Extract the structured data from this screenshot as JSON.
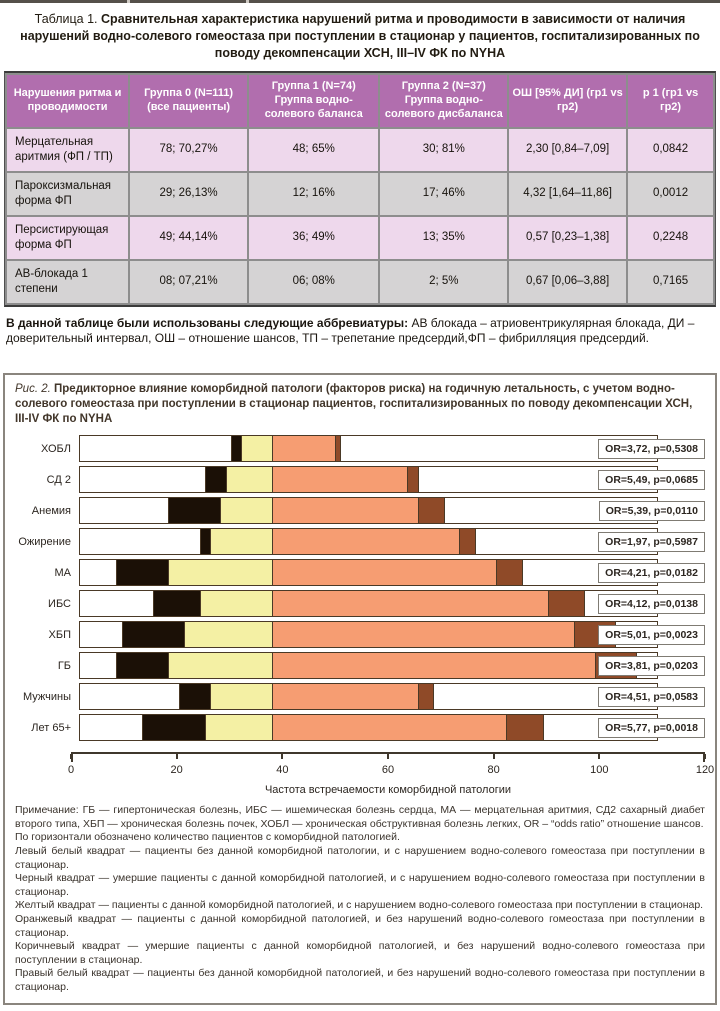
{
  "table": {
    "label": "Таблица 1.",
    "title": "Сравнительная характеристика нарушений ритма и проводимости в зависимости от наличия нарушений водно-солевого гомеостаза при поступлении в стационар у пациентов, госпитализированных по поводу декомпенсации ХСН, III–IV ФК по NYHA",
    "headers": [
      "Нарушения ритма и проводимости",
      "Группа 0 (N=111) (все пациенты)",
      "Группа 1 (N=74) Группа водно-солевого баланса",
      "Группа 2 (N=37) Группа водно-солевого дисбаланса",
      "ОШ [95% ДИ] (гр1 vs гр2)",
      "р 1 (гр1 vs гр2)"
    ],
    "rows": [
      {
        "name": "Мерцательная аритмия (ФП / ТП)",
        "g0": "78; 70,27%",
        "g1": "48; 65%",
        "g2": "30; 81%",
        "or": "2,30 [0,84–7,09]",
        "p": "0,0842"
      },
      {
        "name": "Пароксизмальная форма ФП",
        "g0": "29; 26,13%",
        "g1": "12; 16%",
        "g2": "17; 46%",
        "or": "4,32 [1,64–11,86]",
        "p": "0,0012"
      },
      {
        "name": "Персистирующая форма ФП",
        "g0": "49; 44,14%",
        "g1": "36; 49%",
        "g2": "13; 35%",
        "or": "0,57 [0,23–1,38]",
        "p": "0,2248"
      },
      {
        "name": "АВ-блокада 1 степени",
        "g0": "08; 07,21%",
        "g1": "06; 08%",
        "g2": "2; 5%",
        "or": "0,67 [0,06–3,88]",
        "p": "0,7165"
      }
    ],
    "note_lead": "В данной таблице были использованы следующие аббревиатуры:",
    "note_rest": " АВ блокада – атриовентрикулярная блокада, ДИ – доверительный интервал, ОШ – отношение шансов, ТП – трепетание предсердий,ФП – фибрилляция предсердий."
  },
  "figure": {
    "label": "Рис. 2.",
    "title": "Предикторное влияние коморбидной патологи (факторов риска) на годичную летальность, с учетом водно-солевого гомеостаза при поступлении в стационар пациентов, госпитализированных по поводу декомпенсации ХСН, III-IV ФК по NYHA",
    "notes": [
      "Примечание: ГБ — гипертоническая болезнь, ИБС — ишемическая болезнь сердца, МА — мерцательная аритмия, СД2 сахарный диабет второго типа, ХБП — хроническая болезнь почек, ХОБЛ — хроническая обструктивная болезнь легких, OR – “odds ratio” отношение шансов.",
      "По горизонтали обозначено количество пациентов с коморбидной патологией.",
      "Левый белый квадрат — пациенты без данной коморбидной патологии, и с нарушением водно-солевого гомеостаза при поступлении в стационар.",
      "Черный квадрат — умершие пациенты с данной коморбидной патологией, и с нарушением водно-солевого гомеостаза при поступлении в стационар.",
      "Желтый квадрат — пациенты с данной коморбидной патологией, и с нарушением водно-солевого гомеостаза при поступлении в стационар.",
      "Оранжевый квадрат — пациенты с данной коморбидной патологией, и без нарушений водно-солевого гомеостаза при поступлении в стационар.",
      "Коричневый квадрат — умершие пациенты с данной коморбидной патологией, и без нарушений водно-солевого гомеостаза при поступлении в стационар.",
      "Правый белый квадрат — пациенты без данной коморбидной патологией, и без нарушений водно-солевого гомеостаза при поступлении в стационар."
    ]
  },
  "chart_data": {
    "type": "bar",
    "stacked": true,
    "orientation": "horizontal",
    "title": "Рис. 2. Предикторное влияние коморбидной патологи (факторов риска) на годичную летальность",
    "xlabel": "Частота встречаемости коморбидной патологии",
    "xlim": [
      0,
      120
    ],
    "xticks": [
      0,
      20,
      40,
      60,
      80,
      100,
      120
    ],
    "bar_total": 111,
    "categories": [
      "ХОБЛ",
      "СД 2",
      "Анемия",
      "Ожирение",
      "МА",
      "ИБС",
      "ХБП",
      "ГБ",
      "Мужчины",
      "Лет 65+"
    ],
    "series": [
      {
        "key": "left-white",
        "name": "без патологии, с нарушением водно-солевого гомеостаза",
        "color": "#ffffff",
        "values": [
          29,
          24,
          17,
          23,
          7,
          14,
          8,
          7,
          19,
          12
        ]
      },
      {
        "key": "black",
        "name": "умершие с патологией, с нарушением гомеостаза",
        "color": "#1b1006",
        "values": [
          2,
          4,
          10,
          2,
          10,
          9,
          12,
          10,
          6,
          12
        ]
      },
      {
        "key": "yellow",
        "name": "с патологией, с нарушением гомеостаза",
        "color": "#f4f0a4",
        "values": [
          6,
          9,
          10,
          12,
          20,
          14,
          17,
          20,
          12,
          13
        ]
      },
      {
        "key": "orange",
        "name": "с патологией, без нарушений гомеостаза",
        "color": "#f69d72",
        "values": [
          12,
          26,
          28,
          36,
          43,
          53,
          58,
          62,
          28,
          45
        ]
      },
      {
        "key": "brown",
        "name": "умершие с патологией, без нарушений гомеостаза",
        "color": "#8f4a28",
        "values": [
          1,
          2,
          5,
          3,
          5,
          7,
          8,
          8,
          3,
          7
        ]
      },
      {
        "key": "right-white",
        "name": "без патологии, без нарушений гомеостаза",
        "color": "#ffffff",
        "values": [
          61,
          46,
          41,
          35,
          26,
          14,
          8,
          4,
          43,
          22
        ]
      }
    ],
    "annotations": [
      "OR=3,72, p=0,5308",
      "OR=5,49, p=0,0685",
      "OR=5,39, p=0,0110",
      "OR=1,97, p=0,5987",
      "OR=4,21, p=0,0182",
      "OR=4,12, p=0,0138",
      "OR=5,01, p=0,0023",
      "OR=3,81, p=0,0203",
      "OR=4,51, p=0,0583",
      "OR=5,77, p=0,0018"
    ],
    "colors": {
      "header_purple": "#b16eae",
      "row_pink": "#eed8ec",
      "row_gray": "#d5d3d4",
      "bar_black": "#1b1006",
      "bar_yellow": "#f4f0a4",
      "bar_orange": "#f69d72",
      "bar_brown": "#8f4a28",
      "bar_border": "#4a3926"
    }
  }
}
